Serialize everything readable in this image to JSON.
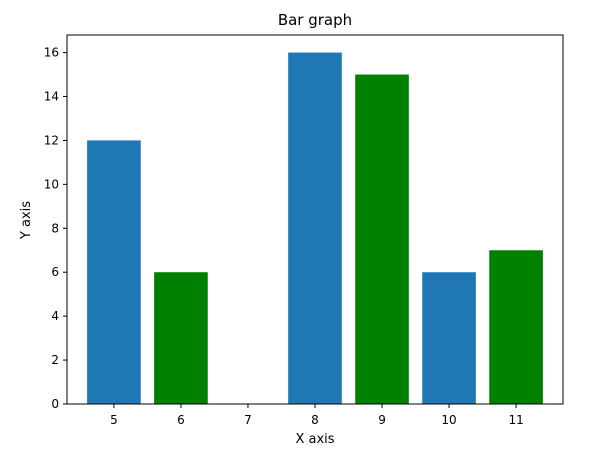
{
  "chart_data": {
    "type": "bar",
    "title": "Bar graph",
    "xlabel": "X axis",
    "ylabel": "Y axis",
    "x": [
      5,
      6,
      7,
      8,
      9,
      10,
      11
    ],
    "values": [
      12,
      6,
      0,
      16,
      15,
      6,
      7
    ],
    "bar_colors": [
      "#1f77b4",
      "#008000",
      "#1f77b4",
      "#1f77b4",
      "#008000",
      "#1f77b4",
      "#008000"
    ],
    "x_ticks": [
      "5",
      "6",
      "7",
      "8",
      "9",
      "10",
      "11"
    ],
    "y_ticks": [
      0,
      2,
      4,
      6,
      8,
      10,
      12,
      14,
      16
    ],
    "xlim": [
      4.3,
      11.7
    ],
    "ylim": [
      0,
      16.8
    ],
    "grid": false,
    "legend": "none"
  }
}
